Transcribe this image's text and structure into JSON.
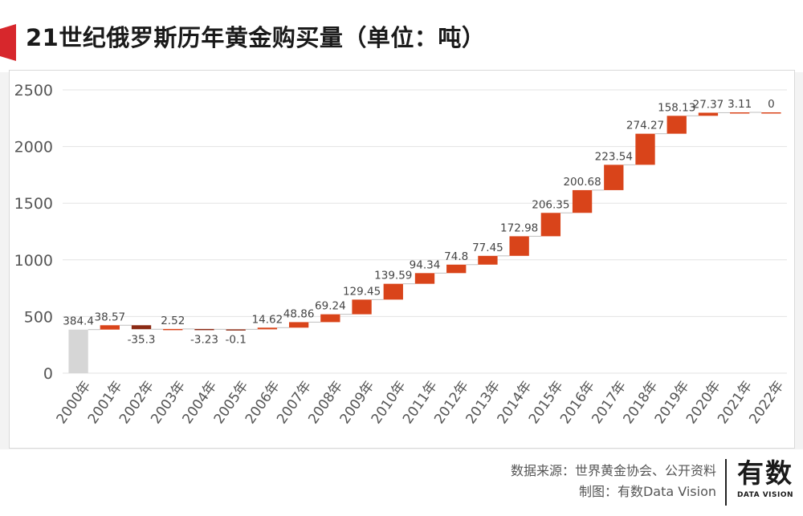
{
  "title": "21世纪俄罗斯历年黄金购买量（单位：吨）",
  "colors": {
    "increase": "#d9441a",
    "decrease": "#8b2a14",
    "total": "#d6d6d6",
    "accent_tab": "#d7272c",
    "grid": "#e3e3e3"
  },
  "chart_data": {
    "type": "bar",
    "subtype": "waterfall",
    "title": "21世纪俄罗斯历年黄金购买量（单位：吨）",
    "categories": [
      "2000年",
      "2001年",
      "2002年",
      "2003年",
      "2004年",
      "2005年",
      "2006年",
      "2007年",
      "2008年",
      "2009年",
      "2010年",
      "2011年",
      "2012年",
      "2013年",
      "2014年",
      "2015年",
      "2016年",
      "2017年",
      "2018年",
      "2019年",
      "2020年",
      "2021年",
      "2022年"
    ],
    "values": [
      384.4,
      38.57,
      -35.3,
      2.52,
      -3.23,
      -0.1,
      14.62,
      48.86,
      69.24,
      129.45,
      139.59,
      94.34,
      74.8,
      77.45,
      172.98,
      206.35,
      200.68,
      223.54,
      274.27,
      158.13,
      27.37,
      3.11,
      0
    ],
    "labels": [
      "384.4",
      "38.57",
      "-35.3",
      "2.52",
      "-3.23",
      "-0.1",
      "14.62",
      "48.86",
      "69.24",
      "129.45",
      "139.59",
      "94.34",
      "74.8",
      "77.45",
      "172.98",
      "206.35",
      "200.68",
      "223.54",
      "274.27",
      "158.13",
      "27.37",
      "3.11",
      "0"
    ],
    "base_category": "2000年",
    "ylim": [
      0,
      2500
    ],
    "yticks": [
      "0",
      "500",
      "1000",
      "1500",
      "2000",
      "2500"
    ],
    "ytick_values": [
      0,
      500,
      1000,
      1500,
      2000,
      2500
    ],
    "grid": true,
    "legend": "none",
    "xlabel": "",
    "ylabel": ""
  },
  "footer": {
    "source": "数据来源：世界黄金协会、公开资料",
    "credit": "制图：有数Data Vision"
  },
  "logo": {
    "text": "有数",
    "subtext": "DATA VISION"
  }
}
